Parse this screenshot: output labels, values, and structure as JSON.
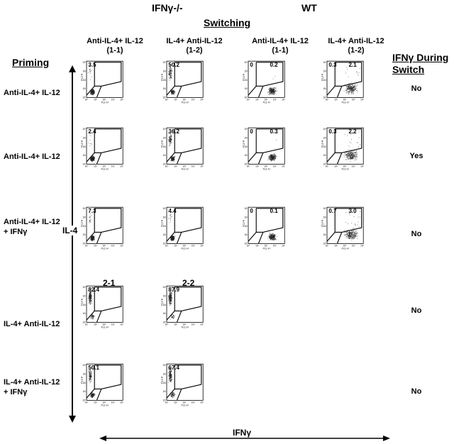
{
  "header": {
    "ko_label": "IFNγ-/-",
    "wt_label": "WT",
    "switching_title": "Switching",
    "priming_title": "Priming",
    "ifn_during_line1": "IFNγ During",
    "ifn_during_line2": "Switch"
  },
  "columns": [
    {
      "line1": "Anti-IL-4+ IL-12",
      "line2": "(1-1)"
    },
    {
      "line1": "IL-4+ Anti-IL-12",
      "line2": "(1-2)"
    },
    {
      "line1": "Anti-IL-4+ IL-12",
      "line2": "(1-1)"
    },
    {
      "line1": "IL-4+ Anti-IL-12",
      "line2": "(1-2)"
    }
  ],
  "subheaders": {
    "c1": "2-1",
    "c2": "2-2"
  },
  "rows": [
    {
      "label1": "Anti-IL-4+ IL-12",
      "label2": "",
      "ifn": "No"
    },
    {
      "label1": "Anti-IL-4+ IL-12",
      "label2": "",
      "ifn": "Yes"
    },
    {
      "label1": "Anti-IL-4+ IL-12",
      "label2": "+ IFNγ",
      "ifn": "No"
    },
    {
      "label1": "IL-4+ Anti-IL-12",
      "label2": "",
      "ifn": "No"
    },
    {
      "label1": "IL-4+ Anti-IL-12",
      "label2": "+ IFNγ",
      "ifn": "No"
    }
  ],
  "axes": {
    "y_label": "IL-4",
    "x_label": "IFNγ",
    "fl1": "FL1-H",
    "fl2": "FL2-H",
    "ticks": [
      "10⁰",
      "10¹",
      "10²",
      "10³",
      "10⁴"
    ]
  },
  "plots": [
    {
      "row": 0,
      "col": 0,
      "pct_left": "3.5",
      "pct_right": ""
    },
    {
      "row": 0,
      "col": 1,
      "pct_left": "50.2",
      "pct_right": ""
    },
    {
      "row": 0,
      "col": 2,
      "pct_left": "0",
      "pct_right": "0.2"
    },
    {
      "row": 0,
      "col": 3,
      "pct_left": "0.3",
      "pct_right": "2.1"
    },
    {
      "row": 1,
      "col": 0,
      "pct_left": "2.4",
      "pct_right": ""
    },
    {
      "row": 1,
      "col": 1,
      "pct_left": "36.2",
      "pct_right": ""
    },
    {
      "row": 1,
      "col": 2,
      "pct_left": "0",
      "pct_right": "0.3"
    },
    {
      "row": 1,
      "col": 3,
      "pct_left": "0.3",
      "pct_right": "2.2"
    },
    {
      "row": 2,
      "col": 0,
      "pct_left": "7.3",
      "pct_right": ""
    },
    {
      "row": 2,
      "col": 1,
      "pct_left": "4.4",
      "pct_right": ""
    },
    {
      "row": 2,
      "col": 2,
      "pct_left": "0",
      "pct_right": "0.1"
    },
    {
      "row": 2,
      "col": 3,
      "pct_left": "0.7",
      "pct_right": "3.0"
    },
    {
      "row": 3,
      "col": 0,
      "pct_left": "82.4",
      "pct_right": ""
    },
    {
      "row": 3,
      "col": 1,
      "pct_left": "87.9",
      "pct_right": ""
    },
    {
      "row": 4,
      "col": 0,
      "pct_left": "50.1",
      "pct_right": ""
    },
    {
      "row": 4,
      "col": 1,
      "pct_left": "67.4",
      "pct_right": ""
    }
  ]
}
